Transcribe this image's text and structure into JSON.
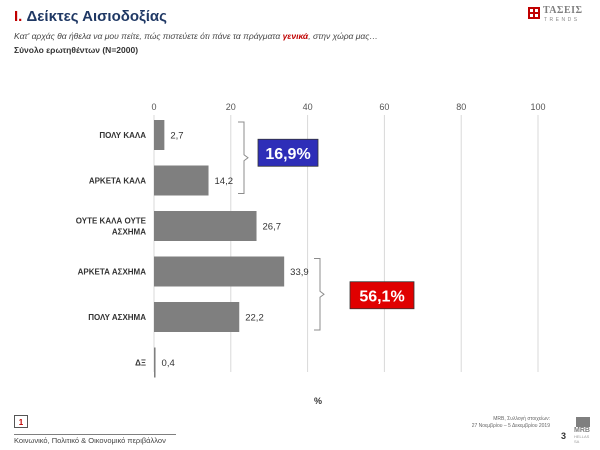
{
  "header": {
    "title_num": "I.",
    "title_text": "Δείκτες Αισιοδοξίας",
    "question_before": "Κατ' αρχάς θα ήθελα να μου πείτε, πώς πιστεύετε ότι πάνε τα πράγματα ",
    "question_emphasis": "γενικά",
    "question_after": ", στην χώρα μας…",
    "base": "Σύνολο ερωτηθέντων (N=2000)"
  },
  "logo": {
    "brand": "ΤΑΣΕΙΣ",
    "tagline": "TRENDS",
    "color": "#c00000"
  },
  "chart_data": {
    "type": "bar",
    "orientation": "horizontal",
    "categories": [
      [
        "ΠΟΛΥ ΚΑΛΑ"
      ],
      [
        "ΑΡΚΕΤΑ ΚΑΛΑ"
      ],
      [
        "ΟΥΤΕ ΚΑΛΑ ΟΥΤΕ",
        "ΑΣΧΗΜΑ"
      ],
      [
        "ΑΡΚΕΤΑ ΑΣΧΗΜΑ"
      ],
      [
        "ΠΟΛΥ ΑΣΧΗΜΑ"
      ],
      [
        "ΔΞ"
      ]
    ],
    "values": [
      2.7,
      14.2,
      26.7,
      33.9,
      22.2,
      0.4
    ],
    "value_labels": [
      "2,7",
      "14,2",
      "26,7",
      "33,9",
      "22,2",
      "0,4"
    ],
    "xlim": [
      0,
      100
    ],
    "xticks": [
      0,
      20,
      40,
      60,
      80,
      100
    ],
    "xlabel": "%",
    "axis_position": "top",
    "grid": true,
    "bar_color": "#7f7f7f",
    "groups": [
      {
        "label": "16,9%",
        "from": 0,
        "to": 1,
        "color": "#2e2eb8"
      },
      {
        "label": "56,1%",
        "from": 3,
        "to": 4,
        "color": "#e00000"
      }
    ]
  },
  "footer": {
    "section_number": "1",
    "section_text": "Κοινωνικό, Πολιτικό & Οικονομικό περιβάλλον",
    "source_line1": "MRB, Συλλογή στοιχείων:",
    "source_line2": "27 Νοεμβρίου – 5 Δεκεμβρίου 2019",
    "page_number": "3",
    "company_logo": "MRB",
    "company_sub": "HELLAS SA"
  }
}
